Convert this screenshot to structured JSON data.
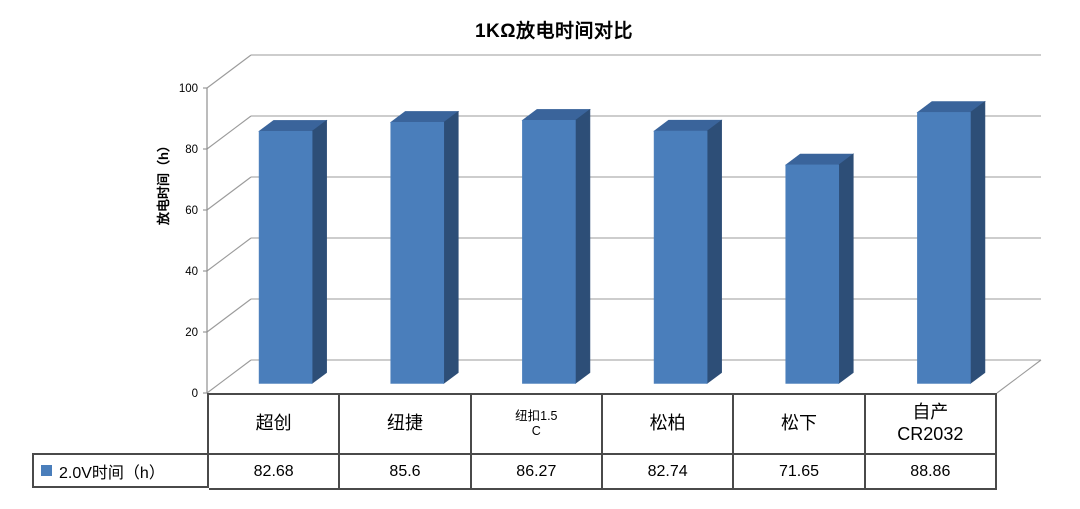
{
  "title": "1KΩ放电时间对比",
  "colors": {
    "bar_front": "#4A7EBB",
    "bar_top": "#3A649B",
    "bar_side": "#2D4E77",
    "gridline": "#9B9B9B",
    "axis_line": "#8F8F8F",
    "table_border": "#4A4A4A",
    "text": "#000000"
  },
  "y_axis": {
    "label": "放电时间（h）",
    "ticks": [
      "0",
      "20",
      "40",
      "60",
      "80",
      "100"
    ],
    "min": 0,
    "max": 100
  },
  "legend": {
    "label": "2.0V时间（h）",
    "swatch_color": "#4A7EBB"
  },
  "table": {
    "cells": [
      {
        "line1": "超创",
        "line2": ""
      },
      {
        "line1": "纽捷",
        "line2": ""
      },
      {
        "line1": "纽扣1.5",
        "line2": "C"
      },
      {
        "line1": "松柏",
        "line2": ""
      },
      {
        "line1": "松下",
        "line2": ""
      },
      {
        "line1": "自产",
        "line2": "CR2032"
      }
    ],
    "values": [
      "82.68",
      "85.6",
      "86.27",
      "82.74",
      "71.65",
      "88.86"
    ]
  },
  "chart_data": {
    "type": "bar",
    "style": "3d-column",
    "title": "1KΩ放电时间对比",
    "categories": [
      "超创",
      "纽捷",
      "纽扣1.5C",
      "松柏",
      "松下",
      "自产CR2032"
    ],
    "series": [
      {
        "name": "2.0V时间（h）",
        "values": [
          82.68,
          85.6,
          86.27,
          82.74,
          71.65,
          88.86
        ]
      }
    ],
    "xlabel": "",
    "ylabel": "放电时间（h）",
    "ylim": [
      0,
      100
    ],
    "ytick_step": 20,
    "grid": true,
    "legend_position": "bottom-left-table"
  }
}
